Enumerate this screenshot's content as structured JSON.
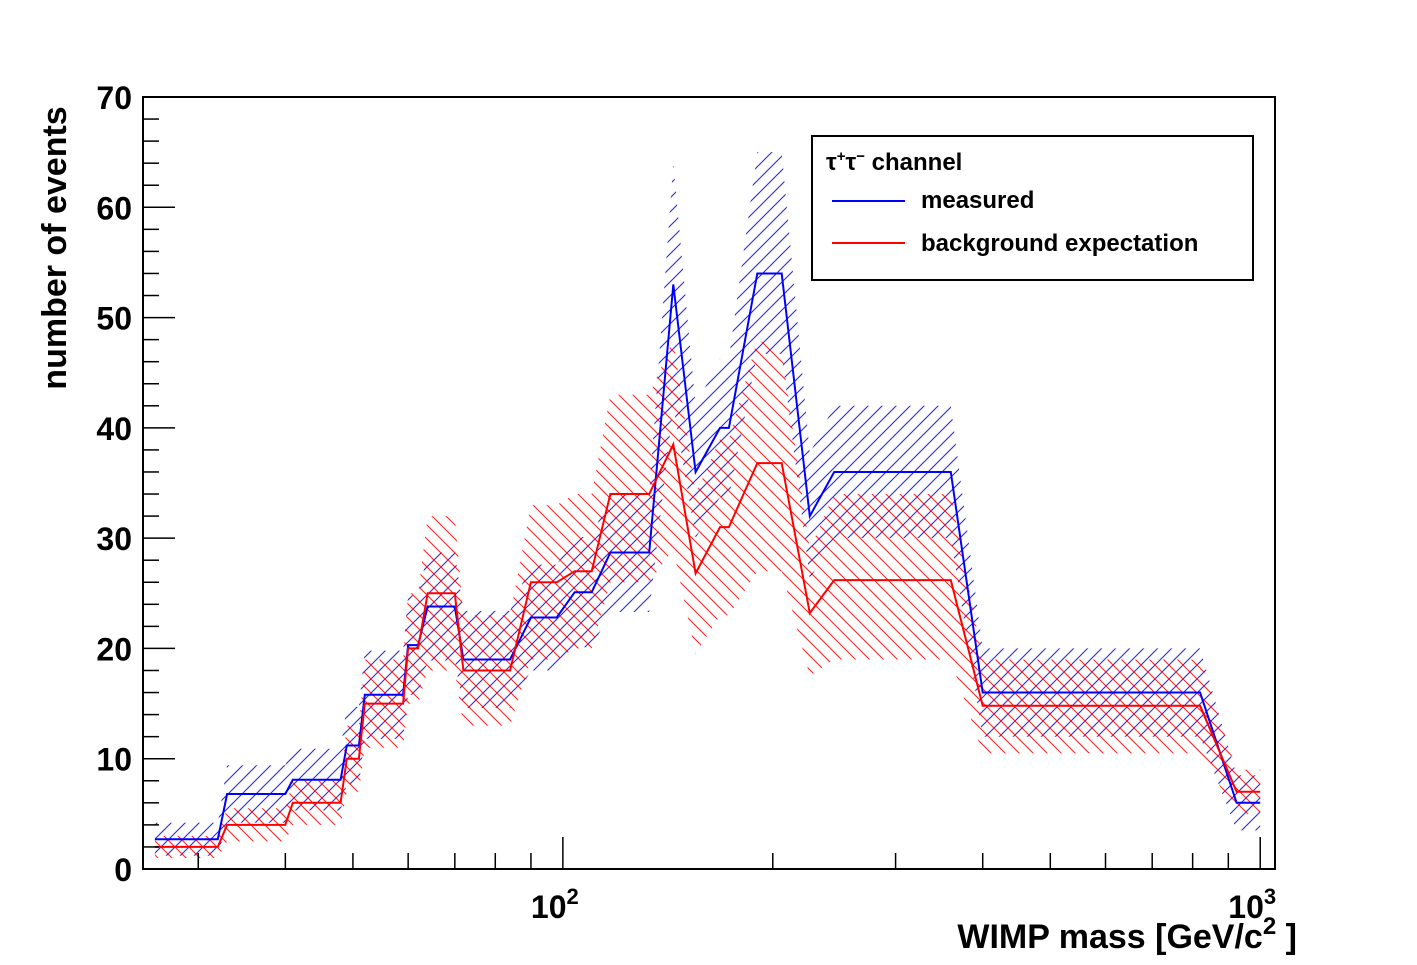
{
  "chart_data": {
    "type": "line",
    "title": "",
    "xlabel": "WIMP mass [GeV/c",
    "xlabel_sup": "2",
    "xlabel_end": " ]",
    "ylabel": "number of events",
    "xscale": "log",
    "xlim": [
      25,
      1050
    ],
    "ylim": [
      0,
      70
    ],
    "y_ticks": [
      "0",
      "10",
      "20",
      "30",
      "40",
      "50",
      "60",
      "70"
    ],
    "x_tick_labels": [
      {
        "value": 100,
        "base": "10",
        "exp": "2"
      },
      {
        "value": 1000,
        "base": "10",
        "exp": "3"
      }
    ],
    "legend": {
      "title_main": "τ",
      "title_sup1": "+",
      "title_mid": "τ",
      "title_sup2": "−",
      "title_rest": " channel",
      "placement": "top-right",
      "entries": [
        "measured",
        "background expectation"
      ]
    },
    "series": [
      {
        "name": "measured",
        "color": "#0000ff",
        "hatch": "up",
        "points": [
          [
            26,
            2.7
          ],
          [
            32,
            2.7
          ],
          [
            33,
            6.8
          ],
          [
            40,
            6.8
          ],
          [
            41,
            8.1
          ],
          [
            48,
            8.1
          ],
          [
            49,
            11.2
          ],
          [
            51,
            11.2
          ],
          [
            52,
            15.8
          ],
          [
            59,
            15.8
          ],
          [
            60,
            20.3
          ],
          [
            62,
            20.3
          ],
          [
            64,
            23.8
          ],
          [
            70,
            23.8
          ],
          [
            72,
            19.0
          ],
          [
            84,
            19.0
          ],
          [
            90,
            22.8
          ],
          [
            98,
            22.8
          ],
          [
            104,
            25.1
          ],
          [
            110,
            25.1
          ],
          [
            117,
            28.7
          ],
          [
            133,
            28.7
          ],
          [
            144,
            53.0
          ],
          [
            155,
            36.0
          ],
          [
            168,
            40.0
          ],
          [
            173,
            40.0
          ],
          [
            190,
            54.0
          ],
          [
            206,
            54.0
          ],
          [
            226,
            32.0
          ],
          [
            245,
            36.0
          ],
          [
            360,
            36.0
          ],
          [
            400,
            16.0
          ],
          [
            820,
            16.0
          ],
          [
            925,
            6.0
          ],
          [
            1000,
            6.0
          ]
        ],
        "band": [
          [
            26,
            1.2,
            4.2
          ],
          [
            32,
            1.2,
            4.2
          ],
          [
            33,
            4.2,
            9.4
          ],
          [
            40,
            4.2,
            9.4
          ],
          [
            41,
            5.3,
            10.9
          ],
          [
            48,
            5.3,
            10.9
          ],
          [
            49,
            7.7,
            14.7
          ],
          [
            51,
            7.7,
            14.7
          ],
          [
            52,
            11.8,
            19.8
          ],
          [
            59,
            11.8,
            19.8
          ],
          [
            60,
            15.8,
            24.8
          ],
          [
            62,
            15.8,
            24.8
          ],
          [
            64,
            18.9,
            28.7
          ],
          [
            70,
            18.9,
            28.7
          ],
          [
            72,
            14.6,
            23.4
          ],
          [
            84,
            14.6,
            23.4
          ],
          [
            90,
            18.0,
            27.6
          ],
          [
            98,
            18.0,
            27.6
          ],
          [
            104,
            20.1,
            30.1
          ],
          [
            110,
            20.1,
            30.1
          ],
          [
            117,
            23.3,
            34.1
          ],
          [
            133,
            23.3,
            34.1
          ],
          [
            144,
            42.0,
            64.0
          ],
          [
            155,
            30.0,
            42.0
          ],
          [
            168,
            33.7,
            46.3
          ],
          [
            173,
            33.7,
            46.3
          ],
          [
            190,
            46.7,
            65.0
          ],
          [
            206,
            46.7,
            65.0
          ],
          [
            226,
            26.3,
            37.7
          ],
          [
            245,
            30.0,
            42.0
          ],
          [
            360,
            30.0,
            42.0
          ],
          [
            400,
            12.0,
            20.0
          ],
          [
            820,
            12.0,
            20.0
          ],
          [
            925,
            3.5,
            8.5
          ],
          [
            1000,
            3.5,
            8.5
          ]
        ]
      },
      {
        "name": "background expectation",
        "color": "#ff0000",
        "hatch": "down",
        "points": [
          [
            26,
            2.0
          ],
          [
            32,
            2.0
          ],
          [
            33,
            4.0
          ],
          [
            40,
            4.0
          ],
          [
            41,
            6.0
          ],
          [
            48,
            6.0
          ],
          [
            49,
            10.0
          ],
          [
            51,
            10.0
          ],
          [
            52,
            15.0
          ],
          [
            59,
            15.0
          ],
          [
            60,
            20.0
          ],
          [
            62,
            20.0
          ],
          [
            64,
            25.0
          ],
          [
            70,
            25.0
          ],
          [
            72,
            18.0
          ],
          [
            84,
            18.0
          ],
          [
            90,
            26.0
          ],
          [
            98,
            26.0
          ],
          [
            104,
            27.0
          ],
          [
            110,
            27.0
          ],
          [
            117,
            34.0
          ],
          [
            133,
            34.0
          ],
          [
            144,
            38.5
          ],
          [
            155,
            26.8
          ],
          [
            168,
            31.0
          ],
          [
            173,
            31.0
          ],
          [
            190,
            36.8
          ],
          [
            206,
            36.8
          ],
          [
            226,
            23.2
          ],
          [
            245,
            26.2
          ],
          [
            360,
            26.2
          ],
          [
            400,
            14.8
          ],
          [
            820,
            14.8
          ],
          [
            925,
            7.0
          ],
          [
            1000,
            7.0
          ]
        ],
        "band": [
          [
            26,
            1.0,
            3.0
          ],
          [
            32,
            1.0,
            3.0
          ],
          [
            33,
            2.5,
            5.5
          ],
          [
            40,
            2.5,
            5.5
          ],
          [
            41,
            4.0,
            8.0
          ],
          [
            48,
            4.0,
            8.0
          ],
          [
            49,
            7.0,
            13.0
          ],
          [
            51,
            7.0,
            13.0
          ],
          [
            52,
            11.0,
            19.0
          ],
          [
            59,
            11.0,
            19.0
          ],
          [
            60,
            15.0,
            25.0
          ],
          [
            62,
            15.0,
            25.0
          ],
          [
            64,
            18.0,
            32.0
          ],
          [
            70,
            18.0,
            32.0
          ],
          [
            72,
            13.0,
            23.0
          ],
          [
            84,
            13.0,
            23.0
          ],
          [
            90,
            19.0,
            33.0
          ],
          [
            98,
            19.0,
            33.0
          ],
          [
            104,
            20.0,
            34.0
          ],
          [
            110,
            20.0,
            34.0
          ],
          [
            117,
            26.0,
            43.0
          ],
          [
            133,
            26.0,
            43.0
          ],
          [
            144,
            29.0,
            48.0
          ],
          [
            155,
            19.5,
            34.0
          ],
          [
            168,
            23.0,
            39.0
          ],
          [
            173,
            23.0,
            39.0
          ],
          [
            190,
            27.0,
            48.0
          ],
          [
            206,
            27.0,
            47.0
          ],
          [
            226,
            17.5,
            29.0
          ],
          [
            245,
            19.0,
            34.0
          ],
          [
            360,
            19.0,
            34.0
          ],
          [
            400,
            10.5,
            19.0
          ],
          [
            820,
            10.5,
            19.0
          ],
          [
            925,
            5.0,
            9.0
          ],
          [
            1000,
            5.0,
            9.0
          ]
        ]
      }
    ]
  }
}
